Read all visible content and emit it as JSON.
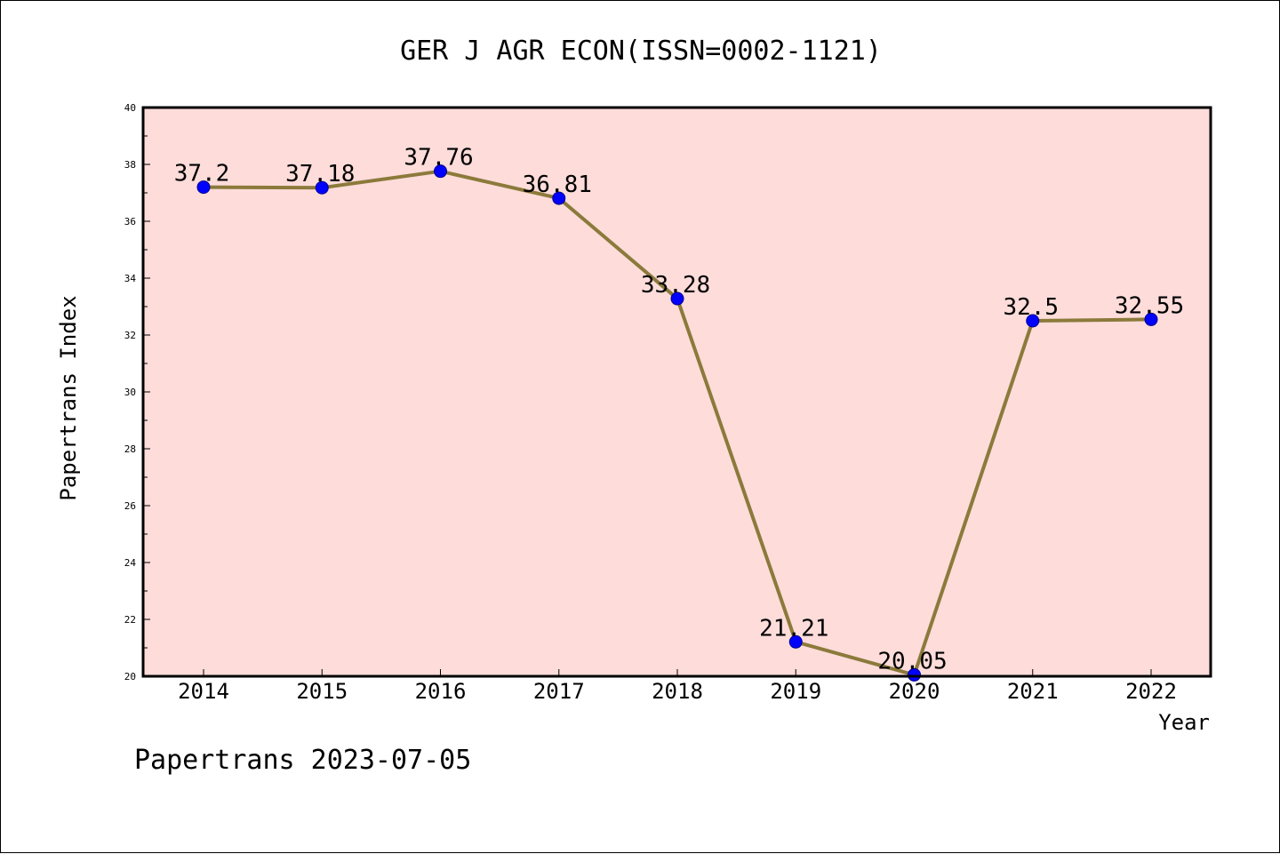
{
  "chart_data": {
    "type": "line",
    "title": "GER J AGR ECON(ISSN=0002-1121)",
    "xlabel": "Year",
    "ylabel": "Papertrans Index",
    "categories": [
      "2014",
      "2015",
      "2016",
      "2017",
      "2018",
      "2019",
      "2020",
      "2021",
      "2022"
    ],
    "series": [
      {
        "values": [
          37.2,
          37.18,
          37.76,
          36.81,
          33.28,
          21.21,
          20.05,
          32.5,
          32.55
        ],
        "labels": [
          "37.2",
          "37.18",
          "37.76",
          "36.81",
          "33.28",
          "21.21",
          "20.05",
          "32.5",
          "32.55"
        ]
      }
    ],
    "ylim": [
      20,
      40
    ],
    "yticks": [
      "20",
      "22",
      "24",
      "26",
      "28",
      "30",
      "32",
      "34",
      "36",
      "38",
      "40"
    ],
    "grid": false,
    "legend": "none",
    "colors": {
      "plot_background": "#FDDCDA",
      "line": "#8B7A3A",
      "marker": "#0000FF",
      "marker_edge": "#00008B",
      "text": "#000000"
    }
  },
  "footer": {
    "text": "Papertrans 2023-07-05"
  }
}
